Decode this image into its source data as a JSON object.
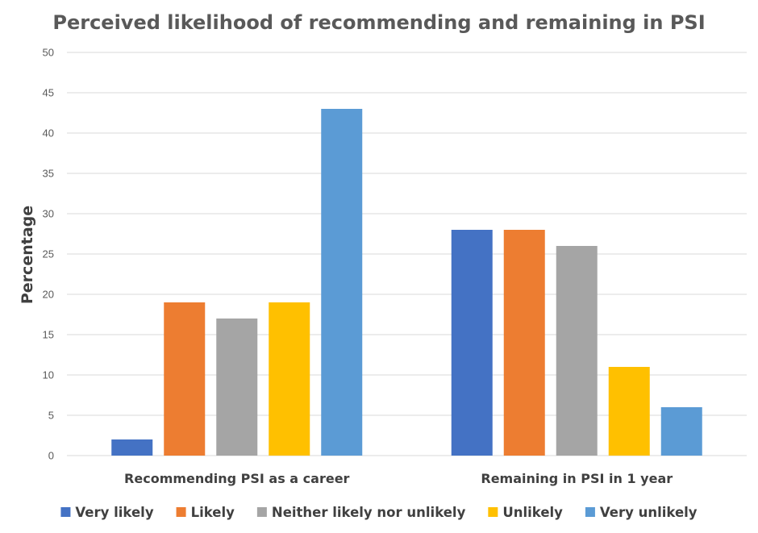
{
  "chart_data": {
    "type": "bar",
    "title": "Perceived likelihood of recommending and remaining in PSI",
    "ylabel": "Percentage",
    "xlabel": "",
    "categories": [
      "Recommending PSI as a career",
      "Remaining in PSI in 1 year"
    ],
    "series": [
      {
        "name": "Very likely",
        "color": "#4472C4",
        "values": [
          2,
          28
        ]
      },
      {
        "name": "Likely",
        "color": "#ED7D31",
        "values": [
          19,
          28
        ]
      },
      {
        "name": "Neither likely nor unlikely",
        "color": "#A5A5A5",
        "values": [
          17,
          26
        ]
      },
      {
        "name": "Unlikely",
        "color": "#FFC000",
        "values": [
          19,
          11
        ]
      },
      {
        "name": "Very unlikely",
        "color": "#5B9BD5",
        "values": [
          43,
          6
        ]
      }
    ],
    "ylim": [
      0,
      50
    ],
    "yticks": [
      0,
      5,
      10,
      15,
      20,
      25,
      30,
      35,
      40,
      45,
      50
    ],
    "grid": true,
    "legend_position": "bottom"
  }
}
